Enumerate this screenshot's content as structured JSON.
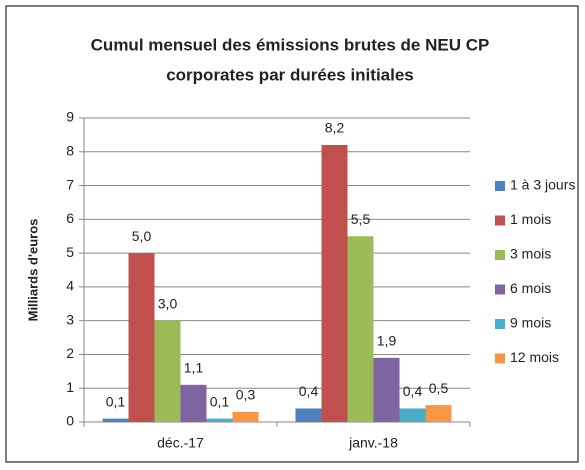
{
  "chart_data": {
    "type": "bar",
    "title": [
      "Cumul mensuel des émissions brutes  de NEU CP",
      "corporates par durées initiales"
    ],
    "y_label": "Milliards d'euros",
    "categories": [
      "déc.-17",
      "janv.-18"
    ],
    "series": [
      {
        "name": "1 à 3 jours",
        "color": "#4f81bd",
        "values": [
          0.1,
          0.4
        ],
        "value_labels": [
          "0,1",
          "0,4"
        ]
      },
      {
        "name": "1 mois",
        "color": "#c0504d",
        "values": [
          5.0,
          8.2
        ],
        "value_labels": [
          "5,0",
          "8,2"
        ]
      },
      {
        "name": "3 mois",
        "color": "#9bbb59",
        "values": [
          3.0,
          5.5
        ],
        "value_labels": [
          "3,0",
          "5,5"
        ]
      },
      {
        "name": "6 mois",
        "color": "#8064a2",
        "values": [
          1.1,
          1.9
        ],
        "value_labels": [
          "1,1",
          "1,9"
        ]
      },
      {
        "name": "9 mois",
        "color": "#4bacc6",
        "values": [
          0.1,
          0.4
        ],
        "value_labels": [
          "0,1",
          "0,4"
        ]
      },
      {
        "name": "12 mois",
        "color": "#f79646",
        "values": [
          0.3,
          0.5
        ],
        "value_labels": [
          "0,3",
          "0,5"
        ]
      }
    ],
    "ylim": [
      0,
      9
    ],
    "yticks": [
      0,
      1,
      2,
      3,
      4,
      5,
      6,
      7,
      8,
      9
    ],
    "grid": true,
    "legend": "right"
  }
}
